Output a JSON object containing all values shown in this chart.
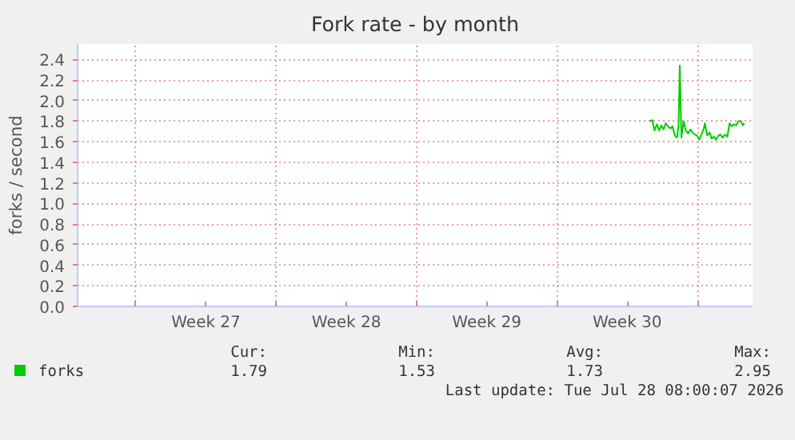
{
  "chart_data": {
    "type": "line",
    "title": "Fork rate - by month",
    "ylabel": "forks / second",
    "xlim": [
      "2026-06-25T02:24",
      "2026-07-28T18:00"
    ],
    "ylim": [
      0,
      2.55
    ],
    "xticks": [
      {
        "value": "2026-06-28",
        "label": null
      },
      {
        "value": "2026-07-01T12:00",
        "label": "Week 27"
      },
      {
        "value": "2026-07-05",
        "label": null
      },
      {
        "value": "2026-07-08T12:00",
        "label": "Week 28"
      },
      {
        "value": "2026-07-12",
        "label": null
      },
      {
        "value": "2026-07-15T12:00",
        "label": "Week 29"
      },
      {
        "value": "2026-07-19",
        "label": null
      },
      {
        "value": "2026-07-22T12:00",
        "label": "Week 30"
      },
      {
        "value": "2026-07-26",
        "label": null
      }
    ],
    "yticks": [
      {
        "value": 0,
        "label": "0.0"
      },
      0.2,
      0.4,
      0.6,
      0.8,
      {
        "value": 1,
        "label": "1.0"
      },
      1.2,
      1.4,
      1.6,
      1.8,
      {
        "value": 2,
        "label": "2.0"
      },
      2.2,
      2.4
    ],
    "grid": true,
    "legend": "bottom",
    "line_style": "solid",
    "series": [
      {
        "name": "forks",
        "color": "#00cc00",
        "x": [
          "2026-07-23T14:38",
          "2026-07-23T18:00",
          "2026-07-23T20:38",
          "2026-07-23T23:31",
          "2026-07-24T02:10",
          "2026-07-24T04:48",
          "2026-07-24T07:26",
          "2026-07-24T10:05",
          "2026-07-24T12:43",
          "2026-07-24T15:36",
          "2026-07-24T18:14",
          "2026-07-24T20:53",
          "2026-07-24T23:31",
          "2026-07-25T01:26",
          "2026-07-25T02:53",
          "2026-07-25T04:48",
          "2026-07-25T07:26",
          "2026-07-25T10:05",
          "2026-07-25T12:58",
          "2026-07-25T15:36",
          "2026-07-25T18:14",
          "2026-07-25T20:53",
          "2026-07-25T23:31",
          "2026-07-26T02:10",
          "2026-07-26T04:48",
          "2026-07-26T07:41",
          "2026-07-26T08:53",
          "2026-07-26T11:46",
          "2026-07-26T14:24",
          "2026-07-26T17:02",
          "2026-07-26T19:41",
          "2026-07-26T22:19",
          "2026-07-27T00:58",
          "2026-07-27T03:36",
          "2026-07-27T06:14",
          "2026-07-27T08:53",
          "2026-07-27T11:46",
          "2026-07-27T14:24",
          "2026-07-27T17:02",
          "2026-07-27T19:41",
          "2026-07-27T22:19",
          "2026-07-28T00:58",
          "2026-07-28T03:50",
          "2026-07-28T06:29",
          "2026-07-28T08:00"
        ],
        "values": [
          1.8,
          1.81,
          1.71,
          1.77,
          1.71,
          1.76,
          1.72,
          1.78,
          1.75,
          1.73,
          1.75,
          1.66,
          1.64,
          1.76,
          2.34,
          1.64,
          1.8,
          1.71,
          1.68,
          1.72,
          1.69,
          1.67,
          1.66,
          1.62,
          1.67,
          1.73,
          1.78,
          1.66,
          1.69,
          1.63,
          1.65,
          1.62,
          1.66,
          1.67,
          1.64,
          1.67,
          1.65,
          1.78,
          1.75,
          1.77,
          1.76,
          1.8,
          1.8,
          1.76,
          1.78
        ]
      }
    ],
    "annotations": [
      "Cur:",
      "Min:",
      "Avg:",
      "Max:",
      "1.79",
      "1.53",
      "1.73",
      "2.95",
      "Last update: Tue Jul 28 08:00:07 2026"
    ]
  }
}
